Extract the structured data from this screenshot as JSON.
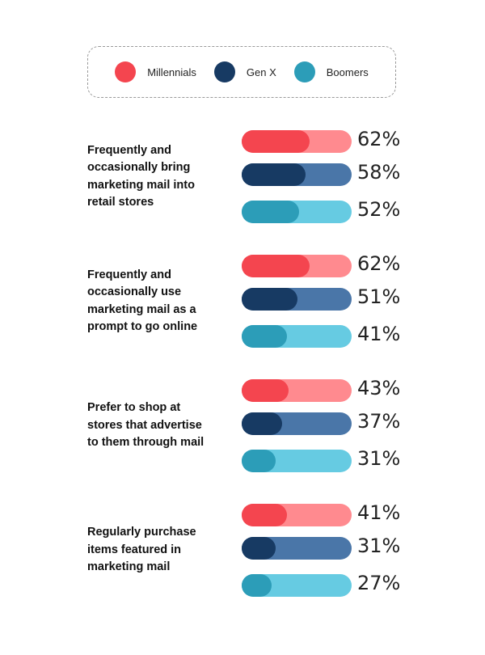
{
  "chart_data": {
    "type": "bar",
    "orientation": "horizontal",
    "categories": [
      "Frequently and occasionally bring marketing mail into retail stores",
      "Frequently and occasionally use marketing mail as a prompt to go online",
      "Prefer to shop at stores that advertise to them through mail",
      "Regularly purchase items featured in marketing mail"
    ],
    "category_lines": [
      [
        "Frequently and",
        "occasionally bring",
        "marketing mail into",
        "retail stores"
      ],
      [
        "Frequently and",
        "occasionally use",
        "marketing mail as a",
        "prompt to go online"
      ],
      [
        "Prefer to shop at",
        "stores that advertise",
        "to them through mail"
      ],
      [
        "Regularly purchase",
        "items featured in",
        "marketing mail"
      ]
    ],
    "series": [
      {
        "name": "Millennials",
        "values": [
          62,
          62,
          43,
          41
        ],
        "color": "#f4454f",
        "track_color": "#ff8a8f"
      },
      {
        "name": "Gen X",
        "values": [
          58,
          51,
          37,
          31
        ],
        "color": "#173a63",
        "track_color": "#4a76a8"
      },
      {
        "name": "Boomers",
        "values": [
          52,
          41,
          31,
          27
        ],
        "color": "#2c9db8",
        "track_color": "#66cbe2"
      }
    ],
    "value_suffix": "%",
    "xlim": [
      0,
      100
    ],
    "legend_position": "top",
    "grid": false
  }
}
